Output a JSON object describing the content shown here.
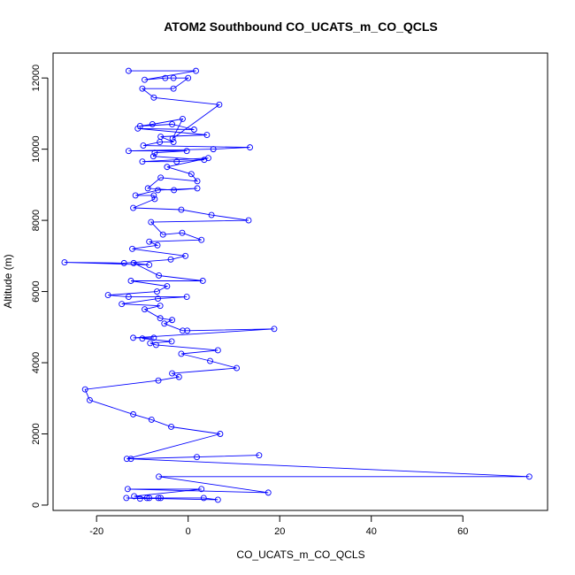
{
  "chart_data": {
    "type": "line",
    "title": "ATOM2 Southbound CO_UCATS_m_CO_QCLS",
    "xlabel": "CO_UCATS_m_CO_QCLS",
    "ylabel": "Altitude (m)",
    "xlim": [
      -29.5,
      78.5
    ],
    "ylim": [
      -150,
      12700
    ],
    "x_ticks": [
      -20,
      0,
      20,
      40,
      60
    ],
    "y_ticks": [
      0,
      2000,
      4000,
      6000,
      8000,
      10000,
      12000
    ],
    "series": [
      {
        "name": "CO_UCATS_m_CO_QCLS",
        "color": "#0000ff",
        "marker": "open-circle",
        "points": [
          [
            -13.0,
            12200
          ],
          [
            1.7,
            12200
          ],
          [
            -9.5,
            11950
          ],
          [
            -5.0,
            12000
          ],
          [
            -3.2,
            12000
          ],
          [
            0,
            12000
          ],
          [
            -3.2,
            11700
          ],
          [
            -10,
            11700
          ],
          [
            -7.5,
            11450
          ],
          [
            6.8,
            11250
          ],
          [
            -3.4,
            10300
          ],
          [
            -1.2,
            10850
          ],
          [
            -7.8,
            10700
          ],
          [
            -10.5,
            10650
          ],
          [
            -3.5,
            10700
          ],
          [
            1.3,
            10550
          ],
          [
            -11.0,
            10580
          ],
          [
            4.1,
            10400
          ],
          [
            -6.0,
            10350
          ],
          [
            -3.2,
            10200
          ],
          [
            -6.2,
            10200
          ],
          [
            -9.8,
            10100
          ],
          [
            13.5,
            10050
          ],
          [
            5.5,
            10000
          ],
          [
            -13.0,
            9950
          ],
          [
            -0.3,
            9950
          ],
          [
            -7.3,
            9900
          ],
          [
            -7.6,
            9800
          ],
          [
            3.5,
            9700
          ],
          [
            -2.5,
            9650
          ],
          [
            -10.0,
            9650
          ],
          [
            4.4,
            9750
          ],
          [
            -4.6,
            9500
          ],
          [
            0.7,
            9300
          ],
          [
            2.0,
            9100
          ],
          [
            -6.0,
            9200
          ],
          [
            -8.8,
            8900
          ],
          [
            -3.1,
            8850
          ],
          [
            2.0,
            8900
          ],
          [
            -6.6,
            8850
          ],
          [
            -11.5,
            8700
          ],
          [
            -7.5,
            8700
          ],
          [
            -7.3,
            8600
          ],
          [
            -12.0,
            8350
          ],
          [
            -1.5,
            8300
          ],
          [
            5.1,
            8150
          ],
          [
            13.2,
            8000
          ],
          [
            -8.1,
            7950
          ],
          [
            -5.5,
            7600
          ],
          [
            -1.3,
            7650
          ],
          [
            2.9,
            7450
          ],
          [
            -8.5,
            7400
          ],
          [
            -6.7,
            7300
          ],
          [
            -12.2,
            7200
          ],
          [
            -0.6,
            7000
          ],
          [
            -3.8,
            6900
          ],
          [
            -14.0,
            6800
          ],
          [
            -27.0,
            6820
          ],
          [
            -8.5,
            6750
          ],
          [
            -11.9,
            6800
          ],
          [
            -6.4,
            6450
          ],
          [
            3.2,
            6300
          ],
          [
            -12.5,
            6300
          ],
          [
            -4.6,
            6150
          ],
          [
            -6.8,
            6000
          ],
          [
            -17.5,
            5900
          ],
          [
            -13.0,
            5850
          ],
          [
            -0.3,
            5850
          ],
          [
            -6.6,
            5800
          ],
          [
            -14.5,
            5650
          ],
          [
            -6.1,
            5600
          ],
          [
            -9.5,
            5500
          ],
          [
            -6.1,
            5250
          ],
          [
            -3.5,
            5200
          ],
          [
            -5.2,
            5100
          ],
          [
            -1.2,
            4900
          ],
          [
            -0.2,
            4900
          ],
          [
            18.8,
            4950
          ],
          [
            -12.0,
            4700
          ],
          [
            -7.5,
            4700
          ],
          [
            -10.0,
            4680
          ],
          [
            -3.6,
            4600
          ],
          [
            -8.3,
            4550
          ],
          [
            -7.0,
            4500
          ],
          [
            6.5,
            4350
          ],
          [
            -1.5,
            4250
          ],
          [
            4.8,
            4050
          ],
          [
            10.6,
            3850
          ],
          [
            -3.5,
            3700
          ],
          [
            -2.0,
            3600
          ],
          [
            -6.5,
            3500
          ],
          [
            -22.5,
            3250
          ],
          [
            -21.5,
            2950
          ],
          [
            -12.0,
            2550
          ],
          [
            -8.0,
            2400
          ],
          [
            -3.7,
            2200
          ],
          [
            7.0,
            2000
          ],
          [
            -13.4,
            1300
          ],
          [
            1.9,
            1350
          ],
          [
            15.5,
            1400
          ],
          [
            -12.5,
            1300
          ],
          [
            74.5,
            800
          ],
          [
            -6.4,
            800
          ],
          [
            17.5,
            350
          ],
          [
            -13.2,
            450
          ],
          [
            2.9,
            450
          ],
          [
            -11.8,
            250
          ],
          [
            -9.0,
            200
          ],
          [
            -8.5,
            200
          ],
          [
            -6.0,
            200
          ],
          [
            3.4,
            200
          ],
          [
            6.5,
            150
          ],
          [
            -13.5,
            200
          ],
          [
            -10.5,
            180
          ],
          [
            -6.5,
            200
          ]
        ]
      }
    ]
  }
}
